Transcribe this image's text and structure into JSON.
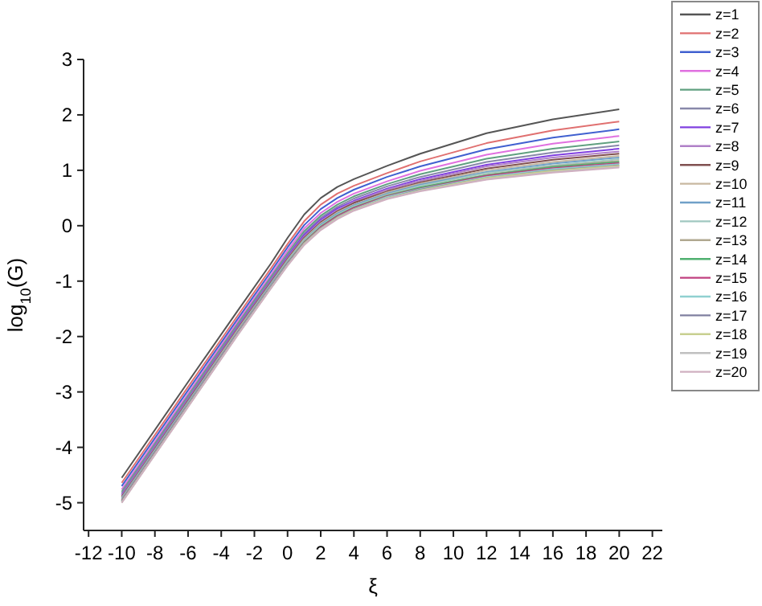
{
  "chart_data": {
    "type": "line",
    "xlabel": "ξ",
    "ylabel": "log$_{10}$(G)",
    "x": [
      -10,
      -6,
      -3,
      -1,
      0,
      1,
      2,
      3,
      4,
      6,
      8,
      12,
      16,
      20
    ],
    "xlim": [
      -12.3,
      22.6
    ],
    "xticks": [
      -12,
      -10,
      -8,
      -6,
      -4,
      -2,
      0,
      2,
      4,
      6,
      8,
      10,
      12,
      14,
      16,
      18,
      20,
      22
    ],
    "ylim": [
      -5.5,
      3
    ],
    "yticks": [
      -5,
      -4,
      -3,
      -2,
      -1,
      0,
      1,
      2,
      3
    ],
    "grid": false,
    "legend": "right",
    "marker": "none",
    "line_style": "solid",
    "series": [
      {
        "name": "z=1",
        "color": "#555555",
        "values": [
          -4.55,
          -2.82,
          -1.53,
          -0.68,
          -0.22,
          0.2,
          0.5,
          0.7,
          0.84,
          1.08,
          1.3,
          1.67,
          1.92,
          2.1
        ]
      },
      {
        "name": "z=2",
        "color": "#e07070",
        "values": [
          -4.64,
          -2.91,
          -1.62,
          -0.77,
          -0.33,
          0.08,
          0.38,
          0.58,
          0.72,
          0.95,
          1.16,
          1.49,
          1.72,
          1.88
        ]
      },
      {
        "name": "z=3",
        "color": "#4060d0",
        "values": [
          -4.7,
          -2.97,
          -1.68,
          -0.83,
          -0.39,
          0.01,
          0.3,
          0.5,
          0.65,
          0.88,
          1.07,
          1.38,
          1.59,
          1.74
        ]
      },
      {
        "name": "z=4",
        "color": "#e070e0",
        "values": [
          -4.76,
          -3.03,
          -1.73,
          -0.89,
          -0.45,
          -0.05,
          0.23,
          0.43,
          0.58,
          0.8,
          0.99,
          1.28,
          1.48,
          1.62
        ]
      },
      {
        "name": "z=5",
        "color": "#60a080",
        "values": [
          -4.8,
          -3.07,
          -1.77,
          -0.93,
          -0.5,
          -0.1,
          0.18,
          0.38,
          0.53,
          0.75,
          0.93,
          1.21,
          1.39,
          1.52
        ]
      },
      {
        "name": "z=6",
        "color": "#8888aa",
        "values": [
          -4.83,
          -3.1,
          -1.8,
          -0.96,
          -0.53,
          -0.14,
          0.14,
          0.34,
          0.49,
          0.71,
          0.88,
          1.15,
          1.32,
          1.45
        ]
      },
      {
        "name": "z=7",
        "color": "#8040e0",
        "values": [
          -4.86,
          -3.13,
          -1.83,
          -0.99,
          -0.56,
          -0.17,
          0.11,
          0.31,
          0.45,
          0.67,
          0.84,
          1.1,
          1.27,
          1.39
        ]
      },
      {
        "name": "z=8",
        "color": "#b080c8",
        "values": [
          -4.87,
          -3.14,
          -1.85,
          -1.0,
          -0.58,
          -0.2,
          0.08,
          0.28,
          0.43,
          0.65,
          0.81,
          1.07,
          1.23,
          1.34
        ]
      },
      {
        "name": "z=9",
        "color": "#805050",
        "values": [
          -4.89,
          -3.16,
          -1.86,
          -1.02,
          -0.6,
          -0.22,
          0.06,
          0.26,
          0.41,
          0.62,
          0.78,
          1.03,
          1.19,
          1.3
        ]
      },
      {
        "name": "z=10",
        "color": "#c8b8a0",
        "values": [
          -4.91,
          -3.18,
          -1.88,
          -1.04,
          -0.62,
          -0.24,
          0.04,
          0.24,
          0.38,
          0.6,
          0.76,
          1.0,
          1.15,
          1.26
        ]
      },
      {
        "name": "z=11",
        "color": "#70a0c8",
        "values": [
          -4.92,
          -3.19,
          -1.9,
          -1.05,
          -0.64,
          -0.26,
          0.02,
          0.22,
          0.37,
          0.58,
          0.74,
          0.97,
          1.12,
          1.23
        ]
      },
      {
        "name": "z=12",
        "color": "#a0c8c0",
        "values": [
          -4.94,
          -3.21,
          -1.91,
          -1.07,
          -0.65,
          -0.27,
          0.0,
          0.2,
          0.35,
          0.56,
          0.72,
          0.95,
          1.09,
          1.2
        ]
      },
      {
        "name": "z=13",
        "color": "#b0a890",
        "values": [
          -4.95,
          -3.22,
          -1.92,
          -1.08,
          -0.67,
          -0.29,
          -0.02,
          0.18,
          0.33,
          0.55,
          0.69,
          0.92,
          1.07,
          1.17
        ]
      },
      {
        "name": "z=14",
        "color": "#50b070",
        "values": [
          -4.96,
          -3.23,
          -1.93,
          -1.09,
          -0.67,
          -0.3,
          -0.02,
          0.18,
          0.33,
          0.54,
          0.69,
          0.91,
          1.06,
          1.15
        ]
      },
      {
        "name": "z=15",
        "color": "#c04080",
        "values": [
          -4.96,
          -3.23,
          -1.93,
          -1.09,
          -0.68,
          -0.31,
          -0.03,
          0.17,
          0.32,
          0.53,
          0.67,
          0.9,
          1.04,
          1.13
        ]
      },
      {
        "name": "z=16",
        "color": "#90d0d0",
        "values": [
          -4.97,
          -3.24,
          -1.94,
          -1.1,
          -0.69,
          -0.32,
          -0.05,
          0.15,
          0.3,
          0.52,
          0.66,
          0.88,
          1.02,
          1.11
        ]
      },
      {
        "name": "z=17",
        "color": "#8080a0",
        "values": [
          -4.98,
          -3.25,
          -1.95,
          -1.11,
          -0.7,
          -0.33,
          -0.06,
          0.14,
          0.29,
          0.5,
          0.65,
          0.86,
          1.0,
          1.09
        ]
      },
      {
        "name": "z=18",
        "color": "#c8d090",
        "values": [
          -4.99,
          -3.26,
          -1.96,
          -1.12,
          -0.71,
          -0.33,
          -0.06,
          0.14,
          0.29,
          0.5,
          0.64,
          0.86,
          0.99,
          1.08
        ]
      },
      {
        "name": "z=19",
        "color": "#c0c0c0",
        "values": [
          -5.0,
          -3.27,
          -1.97,
          -1.13,
          -0.72,
          -0.34,
          -0.07,
          0.13,
          0.28,
          0.49,
          0.63,
          0.84,
          0.97,
          1.06
        ]
      },
      {
        "name": "z=20",
        "color": "#d0b0c0",
        "values": [
          -5.0,
          -3.27,
          -1.97,
          -1.13,
          -0.72,
          -0.35,
          -0.08,
          0.12,
          0.27,
          0.48,
          0.62,
          0.83,
          0.96,
          1.05
        ]
      }
    ]
  }
}
